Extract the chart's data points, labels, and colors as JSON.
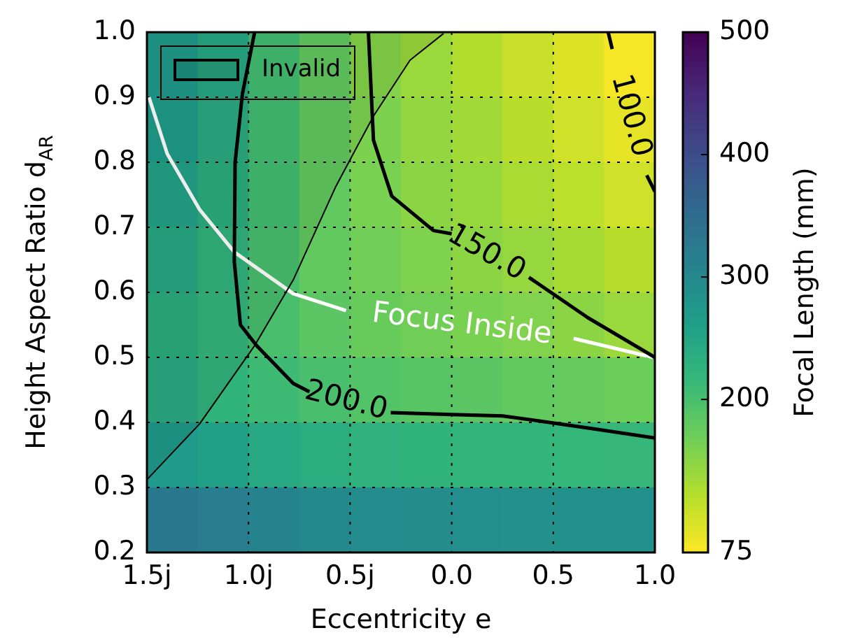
{
  "chart_data": {
    "type": "heatmap",
    "xlabel": "Eccentricity e",
    "ylabel": "Height Aspect Ratio d$_{AR}$",
    "clabel": "Focal Length (mm)",
    "cells": [
      [
        270,
        245,
        205,
        180,
        155,
        140,
        125,
        110,
        95,
        80
      ],
      [
        265,
        240,
        205,
        180,
        160,
        145,
        135,
        120,
        105,
        90
      ],
      [
        255,
        235,
        205,
        180,
        162,
        150,
        142,
        130,
        118,
        105
      ],
      [
        245,
        225,
        200,
        180,
        168,
        158,
        150,
        143,
        132,
        120
      ],
      [
        235,
        220,
        200,
        185,
        175,
        168,
        162,
        157,
        150,
        140
      ],
      [
        240,
        225,
        210,
        200,
        192,
        188,
        185,
        180,
        177,
        172
      ],
      [
        270,
        260,
        245,
        235,
        228,
        225,
        222,
        220,
        218,
        216
      ],
      [
        330,
        320,
        310,
        300,
        295,
        292,
        290,
        288,
        286,
        285
      ]
    ],
    "clim": [
      75,
      500
    ],
    "cticks": [
      75,
      200,
      300,
      400,
      500
    ],
    "xlim": [
      -1.5,
      1.0
    ],
    "xticks": [
      {
        "value": -1.5,
        "label": "1.5j"
      },
      {
        "value": -1.0,
        "label": "1.0j"
      },
      {
        "value": -0.5,
        "label": "0.5j"
      },
      {
        "value": 0,
        "label": "0.0"
      },
      0.5,
      {
        "value": 1.0,
        "label": "1.0"
      }
    ],
    "ylim": [
      0.2,
      1.0
    ],
    "yticks": [
      0.2,
      0.3,
      0.4,
      0.5,
      0.6,
      0.7,
      0.8,
      0.9,
      {
        "value": 1.0,
        "label": "1.0"
      }
    ],
    "grid": true,
    "legend": "top left",
    "series": [
      {
        "type": "area",
        "name": "Invalid",
        "color": "#000000",
        "x": [
          -1.5,
          -1.5,
          -1.24,
          -0.97,
          -0.78,
          -0.57,
          -0.385,
          -0.205,
          -0.04
        ],
        "values": [
          1.0,
          0.312,
          0.398,
          0.518,
          0.619,
          0.763,
          0.871,
          0.957,
          0.998
        ]
      },
      {
        "type": "line",
        "color": "#000000",
        "x": [
          -0.97,
          -1.03,
          -1.066,
          -1.07,
          -1.04,
          -0.96,
          -0.78,
          -0.7,
          -0.52,
          -0.3,
          0,
          0.25,
          0.48,
          0.7,
          1.0
        ],
        "values": [
          1.0,
          0.905,
          0.8,
          0.647,
          0.55,
          0.518,
          0.46,
          0.447,
          null,
          0.415,
          0.412,
          0.41,
          0.4,
          0.39,
          0.376
        ]
      },
      {
        "type": "line",
        "color": "#000000",
        "x": [
          -0.41,
          -0.385,
          -0.295,
          -0.09,
          0.0,
          0.17,
          0.38,
          0.67,
          1.0
        ],
        "values": [
          1.0,
          0.834,
          0.748,
          0.695,
          0.69,
          null,
          0.623,
          0.561,
          0.5
        ]
      },
      {
        "type": "line",
        "color": "#000000",
        "x": [
          0.77,
          0.79,
          0.88,
          0.96,
          1.0
        ],
        "values": [
          1.0,
          0.974,
          null,
          0.78,
          0.755
        ]
      },
      {
        "type": "line",
        "color": "#ffffff",
        "x": [
          -1.49,
          -1.4,
          -1.24,
          -1.07,
          -0.78,
          -0.52,
          0.05,
          0.6,
          0.99
        ],
        "values": [
          0.9,
          0.813,
          0.727,
          0.662,
          0.598,
          0.572,
          null,
          0.529,
          0.5
        ]
      }
    ],
    "annotations": [
      "200.0",
      "150.0",
      "100.0",
      "Focus Inside"
    ]
  }
}
